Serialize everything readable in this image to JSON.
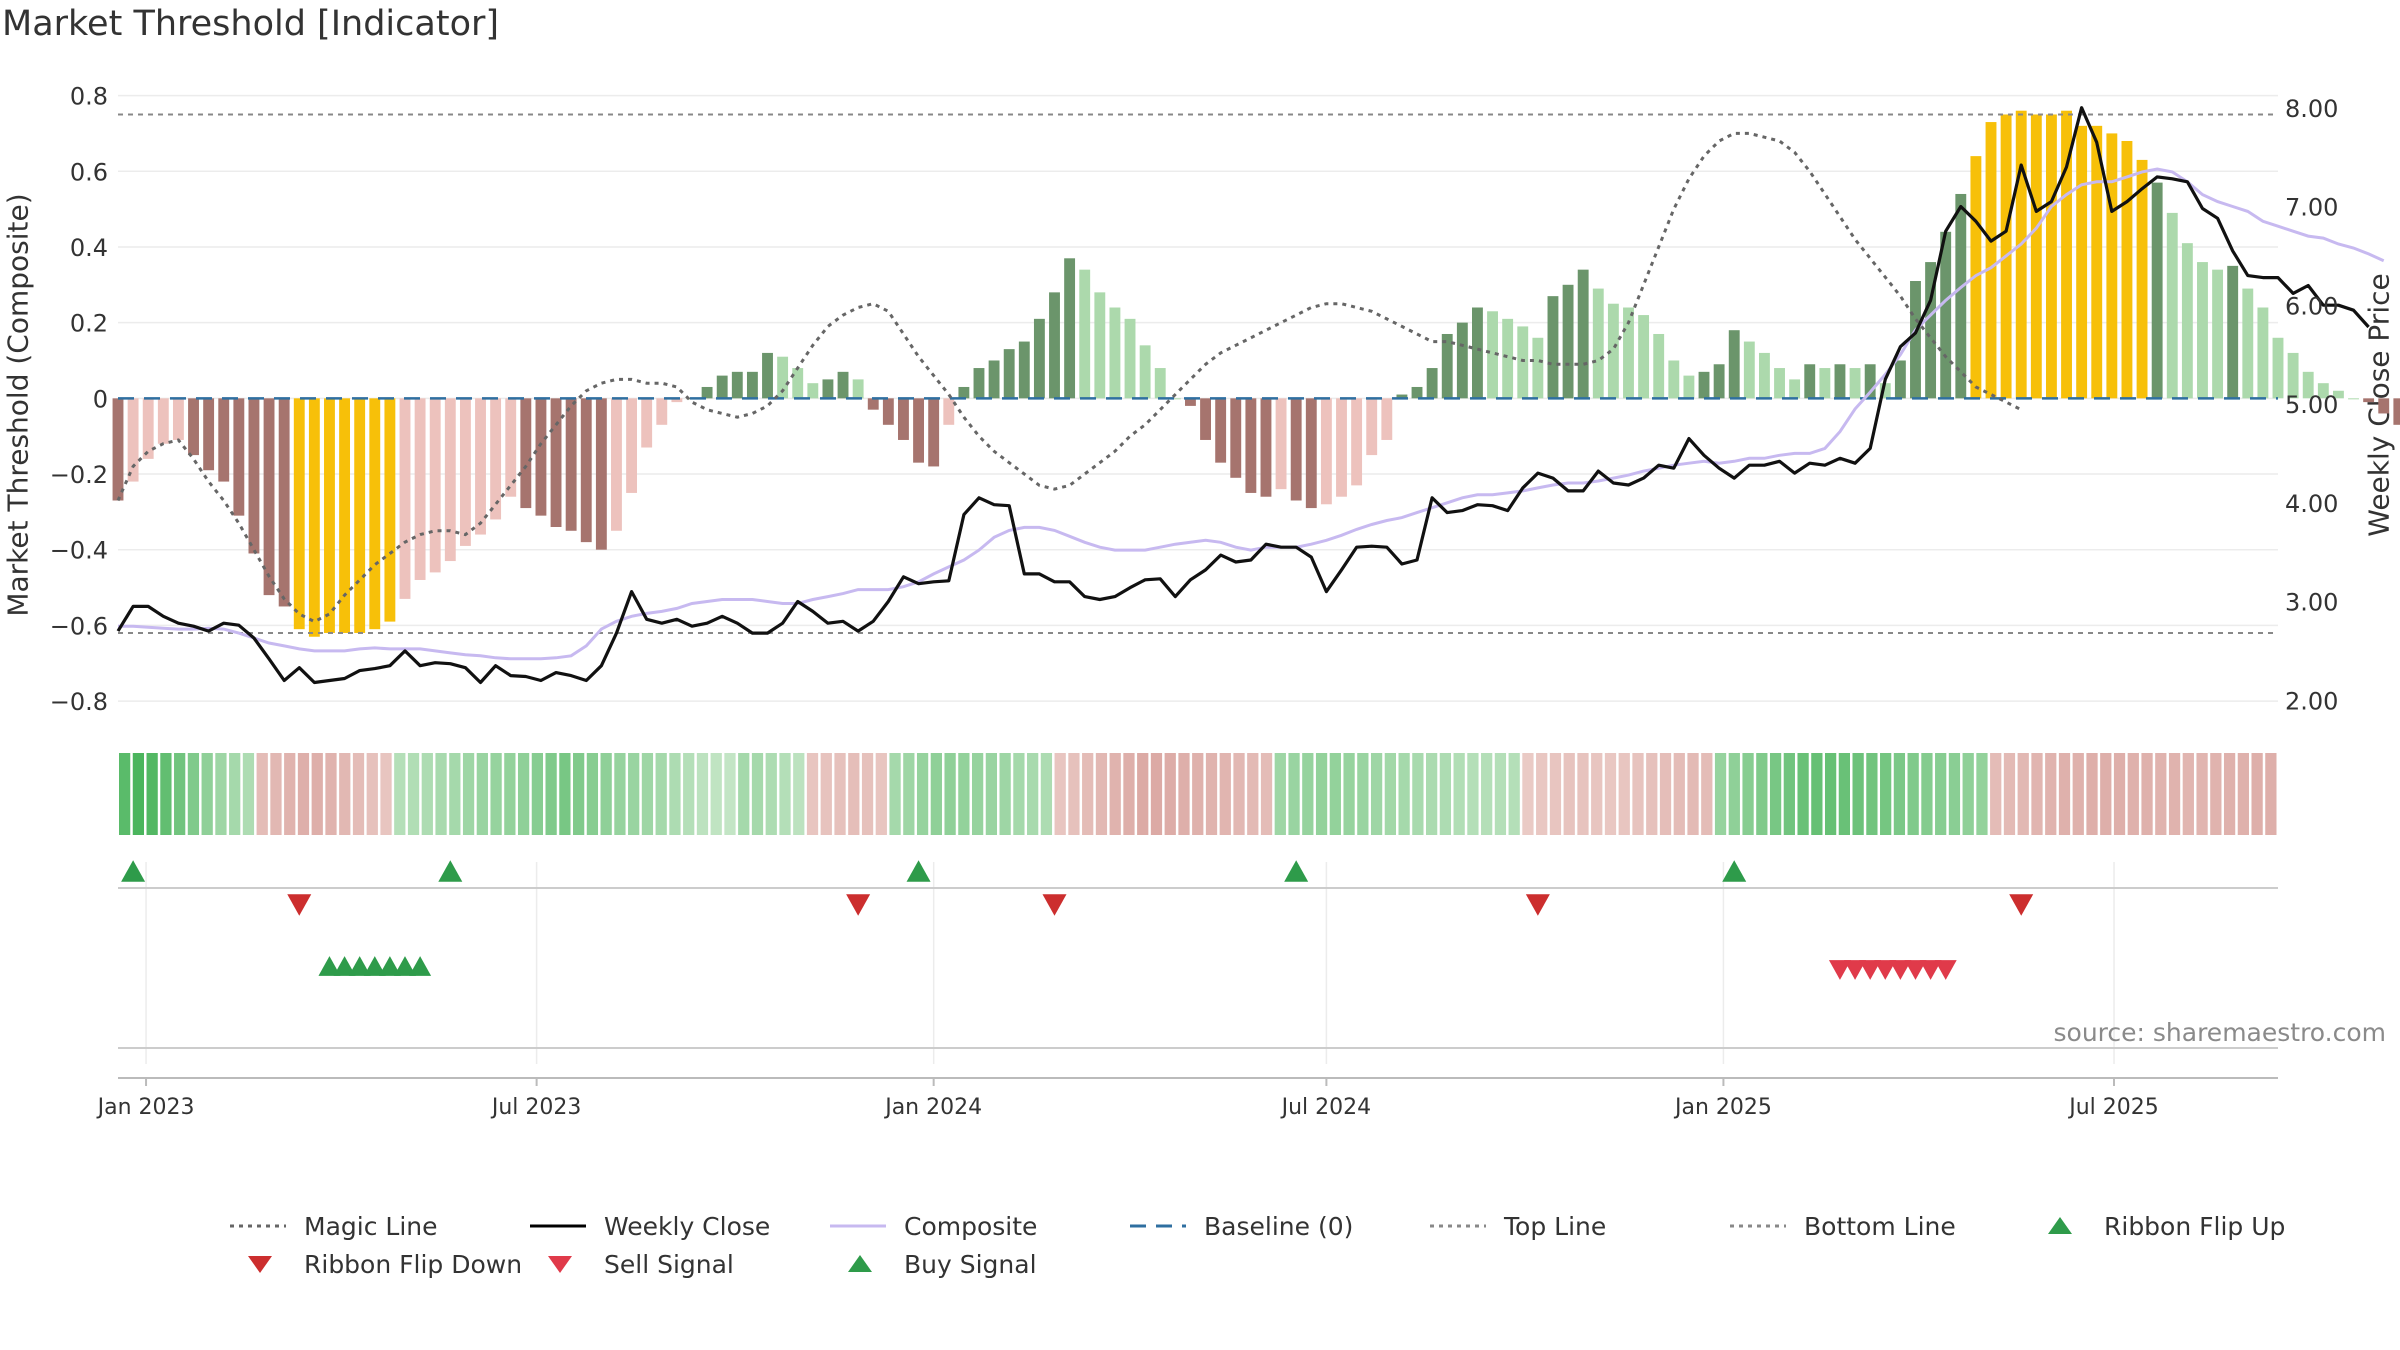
{
  "title": "Market Threshold [Indicator]",
  "source": "source: sharemaestro.com",
  "chart_data": {
    "type": "bar",
    "y_left": {
      "label": "Market Threshold (Composite)",
      "ylim": [
        -0.85,
        0.82
      ],
      "ticks": [
        {
          "v": 0.8,
          "t": "0.8"
        },
        {
          "v": 0.6,
          "t": "0.6"
        },
        {
          "v": 0.4,
          "t": "0.4"
        },
        {
          "v": 0.2,
          "t": "0.2"
        },
        {
          "v": 0,
          "t": "0"
        },
        {
          "v": -0.2,
          "t": "−0.2"
        },
        {
          "v": -0.4,
          "t": "−0.4"
        },
        {
          "v": -0.6,
          "t": "−0.6"
        },
        {
          "v": -0.8,
          "t": "−0.8"
        }
      ]
    },
    "y_right": {
      "label": "Weekly Close Price",
      "ylim": [
        1.8,
        8.2
      ],
      "ticks": [
        {
          "v": 8,
          "t": "8.00"
        },
        {
          "v": 7,
          "t": "7.00"
        },
        {
          "v": 6,
          "t": "6.00"
        },
        {
          "v": 5,
          "t": "5.00"
        },
        {
          "v": 4,
          "t": "4.00"
        },
        {
          "v": 3,
          "t": "3.00"
        },
        {
          "v": 2,
          "t": "2.00"
        }
      ]
    },
    "x_axis": {
      "range": [
        "2022-12-19",
        "2025-09-15"
      ],
      "ticks": [
        {
          "date": "2023-01-01",
          "label": "Jan 2023"
        },
        {
          "date": "2023-07-01",
          "label": "Jul 2023"
        },
        {
          "date": "2024-01-01",
          "label": "Jan 2024"
        },
        {
          "date": "2024-07-01",
          "label": "Jul 2024"
        },
        {
          "date": "2025-01-01",
          "label": "Jan 2025"
        },
        {
          "date": "2025-07-01",
          "label": "Jul 2025"
        }
      ]
    },
    "top_line": 0.75,
    "bottom_line": -0.62,
    "baseline": 0,
    "start_week": "2022-12-19",
    "composite_bars": [
      -0.27,
      -0.22,
      -0.16,
      -0.12,
      -0.11,
      -0.15,
      -0.19,
      -0.22,
      -0.31,
      -0.41,
      -0.52,
      -0.55,
      -0.61,
      -0.63,
      -0.62,
      -0.62,
      -0.62,
      -0.61,
      -0.59,
      -0.53,
      -0.48,
      -0.46,
      -0.43,
      -0.39,
      -0.36,
      -0.32,
      -0.26,
      -0.29,
      -0.31,
      -0.34,
      -0.35,
      -0.38,
      -0.4,
      -0.35,
      -0.25,
      -0.13,
      -0.07,
      -0.01,
      0,
      0.03,
      0.06,
      0.07,
      0.07,
      0.12,
      0.11,
      0.08,
      0.04,
      0.05,
      0.07,
      0.05,
      -0.03,
      -0.07,
      -0.11,
      -0.17,
      -0.18,
      -0.07,
      0.03,
      0.08,
      0.1,
      0.13,
      0.15,
      0.21,
      0.28,
      0.37,
      0.34,
      0.28,
      0.24,
      0.21,
      0.14,
      0.08,
      0,
      -0.02,
      -0.11,
      -0.17,
      -0.21,
      -0.25,
      -0.26,
      -0.24,
      -0.27,
      -0.29,
      -0.28,
      -0.26,
      -0.23,
      -0.15,
      -0.11,
      0.01,
      0.03,
      0.08,
      0.17,
      0.2,
      0.24,
      0.23,
      0.21,
      0.19,
      0.16,
      0.27,
      0.3,
      0.34,
      0.29,
      0.25,
      0.24,
      0.22,
      0.17,
      0.1,
      0.06,
      0.07,
      0.09,
      0.18,
      0.15,
      0.12,
      0.08,
      0.05,
      0.09,
      0.08,
      0.09,
      0.08,
      0.09,
      0.04,
      0.1,
      0.31,
      0.36,
      0.44,
      0.54,
      0.64,
      0.73,
      0.75,
      0.76,
      0.75,
      0.75,
      0.76,
      0.72,
      0.72,
      0.7,
      0.68,
      0.63,
      0.57,
      0.49,
      0.41,
      0.36,
      0.34,
      0.35,
      0.29,
      0.24,
      0.16,
      0.12,
      0.07,
      0.04,
      0.02,
      0,
      -0.01,
      -0.04,
      -0.07,
      -0.1,
      -0.11,
      -0.14
    ],
    "bar_colors": {
      "strong_up": "#6b956b",
      "weak_up": "#acd9ac",
      "strong_down": "#a6746e",
      "weak_down": "#edc2bd",
      "extreme": "#f7c009"
    },
    "weekly_close": [
      2.7,
      2.95,
      2.95,
      2.85,
      2.78,
      2.75,
      2.7,
      2.78,
      2.76,
      2.63,
      2.42,
      2.2,
      2.33,
      2.18,
      2.2,
      2.22,
      2.3,
      2.32,
      2.35,
      2.5,
      2.35,
      2.38,
      2.37,
      2.33,
      2.18,
      2.35,
      2.25,
      2.24,
      2.2,
      2.28,
      2.25,
      2.2,
      2.35,
      2.68,
      3.1,
      2.82,
      2.78,
      2.82,
      2.75,
      2.78,
      2.85,
      2.78,
      2.68,
      2.68,
      2.78,
      3.0,
      2.9,
      2.78,
      2.8,
      2.7,
      2.8,
      3.0,
      3.25,
      3.18,
      3.2,
      3.21,
      3.88,
      4.05,
      3.98,
      3.97,
      3.28,
      3.28,
      3.2,
      3.2,
      3.05,
      3.02,
      3.05,
      3.14,
      3.22,
      3.23,
      3.05,
      3.22,
      3.32,
      3.47,
      3.4,
      3.42,
      3.58,
      3.55,
      3.55,
      3.45,
      3.1,
      3.32,
      3.55,
      3.56,
      3.55,
      3.38,
      3.42,
      4.05,
      3.9,
      3.92,
      3.98,
      3.97,
      3.92,
      4.15,
      4.3,
      4.25,
      4.12,
      4.12,
      4.32,
      4.2,
      4.18,
      4.25,
      4.38,
      4.35,
      4.65,
      4.48,
      4.35,
      4.25,
      4.38,
      4.38,
      4.42,
      4.3,
      4.4,
      4.38,
      4.45,
      4.4,
      4.55,
      5.25,
      5.58,
      5.72,
      6.05,
      6.75,
      7.0,
      6.85,
      6.65,
      6.75,
      7.42,
      6.95,
      7.05,
      7.4,
      8.0,
      7.65,
      6.95,
      7.05,
      7.18,
      7.3,
      7.28,
      7.25,
      6.98,
      6.88,
      6.55,
      6.3,
      6.28,
      6.28,
      6.12,
      6.2,
      6.0,
      6.0,
      5.95,
      5.78
    ],
    "composite_line": [
      2.75,
      2.75,
      2.74,
      2.73,
      2.72,
      2.72,
      2.73,
      2.72,
      2.68,
      2.63,
      2.58,
      2.55,
      2.52,
      2.5,
      2.5,
      2.5,
      2.52,
      2.53,
      2.52,
      2.52,
      2.52,
      2.5,
      2.48,
      2.46,
      2.45,
      2.43,
      2.42,
      2.42,
      2.42,
      2.43,
      2.45,
      2.55,
      2.72,
      2.8,
      2.85,
      2.88,
      2.9,
      2.93,
      2.98,
      3.0,
      3.02,
      3.02,
      3.02,
      3.0,
      2.98,
      2.98,
      3.02,
      3.05,
      3.08,
      3.12,
      3.12,
      3.12,
      3.15,
      3.2,
      3.28,
      3.35,
      3.42,
      3.52,
      3.65,
      3.72,
      3.75,
      3.75,
      3.72,
      3.66,
      3.6,
      3.55,
      3.52,
      3.52,
      3.52,
      3.55,
      3.58,
      3.6,
      3.62,
      3.6,
      3.55,
      3.52,
      3.55,
      3.55,
      3.55,
      3.58,
      3.62,
      3.67,
      3.73,
      3.78,
      3.82,
      3.85,
      3.9,
      3.95,
      4.0,
      4.05,
      4.08,
      4.08,
      4.1,
      4.12,
      4.15,
      4.18,
      4.2,
      4.2,
      4.22,
      4.25,
      4.28,
      4.32,
      4.35,
      4.38,
      4.4,
      4.42,
      4.4,
      4.42,
      4.45,
      4.45,
      4.48,
      4.5,
      4.5,
      4.55,
      4.72,
      4.95,
      5.12,
      5.3,
      5.5,
      5.75,
      5.9,
      6.05,
      6.18,
      6.3,
      6.38,
      6.5,
      6.62,
      6.78,
      7.0,
      7.12,
      7.22,
      7.25,
      7.25,
      7.3,
      7.35,
      7.38,
      7.35,
      7.25,
      7.12,
      7.05,
      7.0,
      6.95,
      6.85,
      6.8,
      6.75,
      6.7,
      6.68,
      6.62,
      6.58,
      6.52,
      6.45
    ],
    "magic_line": [
      -0.27,
      -0.18,
      -0.14,
      -0.12,
      -0.11,
      -0.16,
      -0.22,
      -0.27,
      -0.33,
      -0.4,
      -0.47,
      -0.53,
      -0.57,
      -0.59,
      -0.57,
      -0.52,
      -0.48,
      -0.44,
      -0.41,
      -0.38,
      -0.36,
      -0.35,
      -0.35,
      -0.36,
      -0.33,
      -0.28,
      -0.23,
      -0.18,
      -0.12,
      -0.07,
      -0.02,
      0.02,
      0.04,
      0.05,
      0.05,
      0.04,
      0.04,
      0.03,
      -0.01,
      -0.03,
      -0.04,
      -0.05,
      -0.04,
      -0.02,
      0.02,
      0.08,
      0.14,
      0.19,
      0.22,
      0.24,
      0.25,
      0.23,
      0.17,
      0.11,
      0.06,
      0.01,
      -0.05,
      -0.1,
      -0.14,
      -0.17,
      -0.2,
      -0.23,
      -0.24,
      -0.23,
      -0.2,
      -0.17,
      -0.14,
      -0.1,
      -0.07,
      -0.03,
      0.01,
      0.05,
      0.09,
      0.12,
      0.14,
      0.16,
      0.18,
      0.2,
      0.22,
      0.24,
      0.25,
      0.25,
      0.24,
      0.23,
      0.21,
      0.19,
      0.17,
      0.15,
      0.15,
      0.14,
      0.13,
      0.12,
      0.11,
      0.1,
      0.1,
      0.09,
      0.09,
      0.09,
      0.1,
      0.13,
      0.2,
      0.3,
      0.4,
      0.5,
      0.58,
      0.64,
      0.68,
      0.7,
      0.7,
      0.69,
      0.68,
      0.65,
      0.6,
      0.54,
      0.48,
      0.42,
      0.37,
      0.32,
      0.27,
      0.21,
      0.16,
      0.11,
      0.07,
      0.03,
      0.01,
      -0.01,
      -0.03
    ],
    "buy_signals": [
      "2022-12-26",
      "2023-05-22",
      "2023-12-25",
      "2024-06-17",
      "2025-01-06"
    ],
    "sell_signals": [
      "2023-03-13",
      "2023-11-27",
      "2024-02-26",
      "2024-10-07",
      "2025-05-19"
    ],
    "ribbon_flip_up": [
      "2023-03-27",
      "2023-04-03",
      "2023-04-10",
      "2023-04-17",
      "2023-04-24",
      "2023-05-01",
      "2023-05-08"
    ],
    "ribbon_flip_down": [
      "2025-02-24",
      "2025-03-03",
      "2025-03-10",
      "2025-03-17",
      "2025-03-24",
      "2025-03-31",
      "2025-04-07",
      "2025-04-14"
    ],
    "ribbon_levels": [
      0.8,
      0.9,
      0.85,
      0.75,
      0.65,
      0.55,
      0.45,
      0.35,
      0.3,
      0.25,
      -0.3,
      -0.35,
      -0.4,
      -0.45,
      -0.45,
      -0.4,
      -0.35,
      -0.3,
      -0.25,
      -0.2,
      0.2,
      0.22,
      0.25,
      0.28,
      0.3,
      0.35,
      0.38,
      0.4,
      0.42,
      0.45,
      0.5,
      0.55,
      0.6,
      0.55,
      0.5,
      0.45,
      0.4,
      0.38,
      0.35,
      0.3,
      0.25,
      0.2,
      0.15,
      0.12,
      0.1,
      0.3,
      0.3,
      0.25,
      0.2,
      0.15,
      -0.2,
      -0.22,
      -0.25,
      -0.28,
      -0.25,
      -0.2,
      0.3,
      0.35,
      0.4,
      0.45,
      0.45,
      0.42,
      0.4,
      0.38,
      0.35,
      0.3,
      0.28,
      0.25,
      -0.2,
      -0.25,
      -0.3,
      -0.35,
      -0.4,
      -0.45,
      -0.5,
      -0.5,
      -0.48,
      -0.45,
      -0.42,
      -0.4,
      -0.38,
      -0.35,
      -0.32,
      -0.3,
      0.35,
      0.38,
      0.4,
      0.42,
      0.42,
      0.4,
      0.38,
      0.35,
      0.32,
      0.3,
      0.28,
      0.26,
      0.25,
      0.22,
      0.2,
      0.2,
      0.2,
      0.2,
      -0.15,
      -0.18,
      -0.2,
      -0.22,
      -0.22,
      -0.2,
      -0.18,
      -0.2,
      -0.22,
      -0.25,
      -0.28,
      -0.3,
      -0.32,
      -0.3,
      0.4,
      0.45,
      0.5,
      0.55,
      0.6,
      0.65,
      0.7,
      0.72,
      0.72,
      0.7,
      0.68,
      0.65,
      0.62,
      0.58,
      0.55,
      0.52,
      0.5,
      0.48,
      0.45,
      0.42,
      -0.3,
      -0.32,
      -0.35,
      -0.38,
      -0.4,
      -0.42,
      -0.42,
      -0.45,
      -0.45,
      -0.45,
      -0.42,
      -0.42,
      -0.4,
      -0.4,
      -0.38,
      -0.38,
      -0.4,
      -0.42,
      -0.42,
      -0.44,
      -0.45
    ]
  },
  "legend": [
    {
      "label": "Magic Line",
      "icon": "dotted-line",
      "color": "#666666"
    },
    {
      "label": "Weekly Close",
      "icon": "solid-line",
      "color": "#000000"
    },
    {
      "label": "Composite",
      "icon": "solid-line",
      "color": "#c7b9f0"
    },
    {
      "label": "Baseline (0)",
      "icon": "dashed-line",
      "color": "#2f6fa0"
    },
    {
      "label": "Top Line",
      "icon": "dotted-line",
      "color": "#888888"
    },
    {
      "label": "Bottom Line",
      "icon": "dotted-line",
      "color": "#888888"
    },
    {
      "label": "Ribbon Flip Up",
      "icon": "triangle-up",
      "color": "#2e9b4a"
    },
    {
      "label": "Ribbon Flip Down",
      "icon": "triangle-down",
      "color": "#cc2e2e"
    },
    {
      "label": "Sell Signal",
      "icon": "triangle-down",
      "color": "#e03a4a"
    },
    {
      "label": "Buy Signal",
      "icon": "triangle-up",
      "color": "#2e9b4a"
    }
  ]
}
